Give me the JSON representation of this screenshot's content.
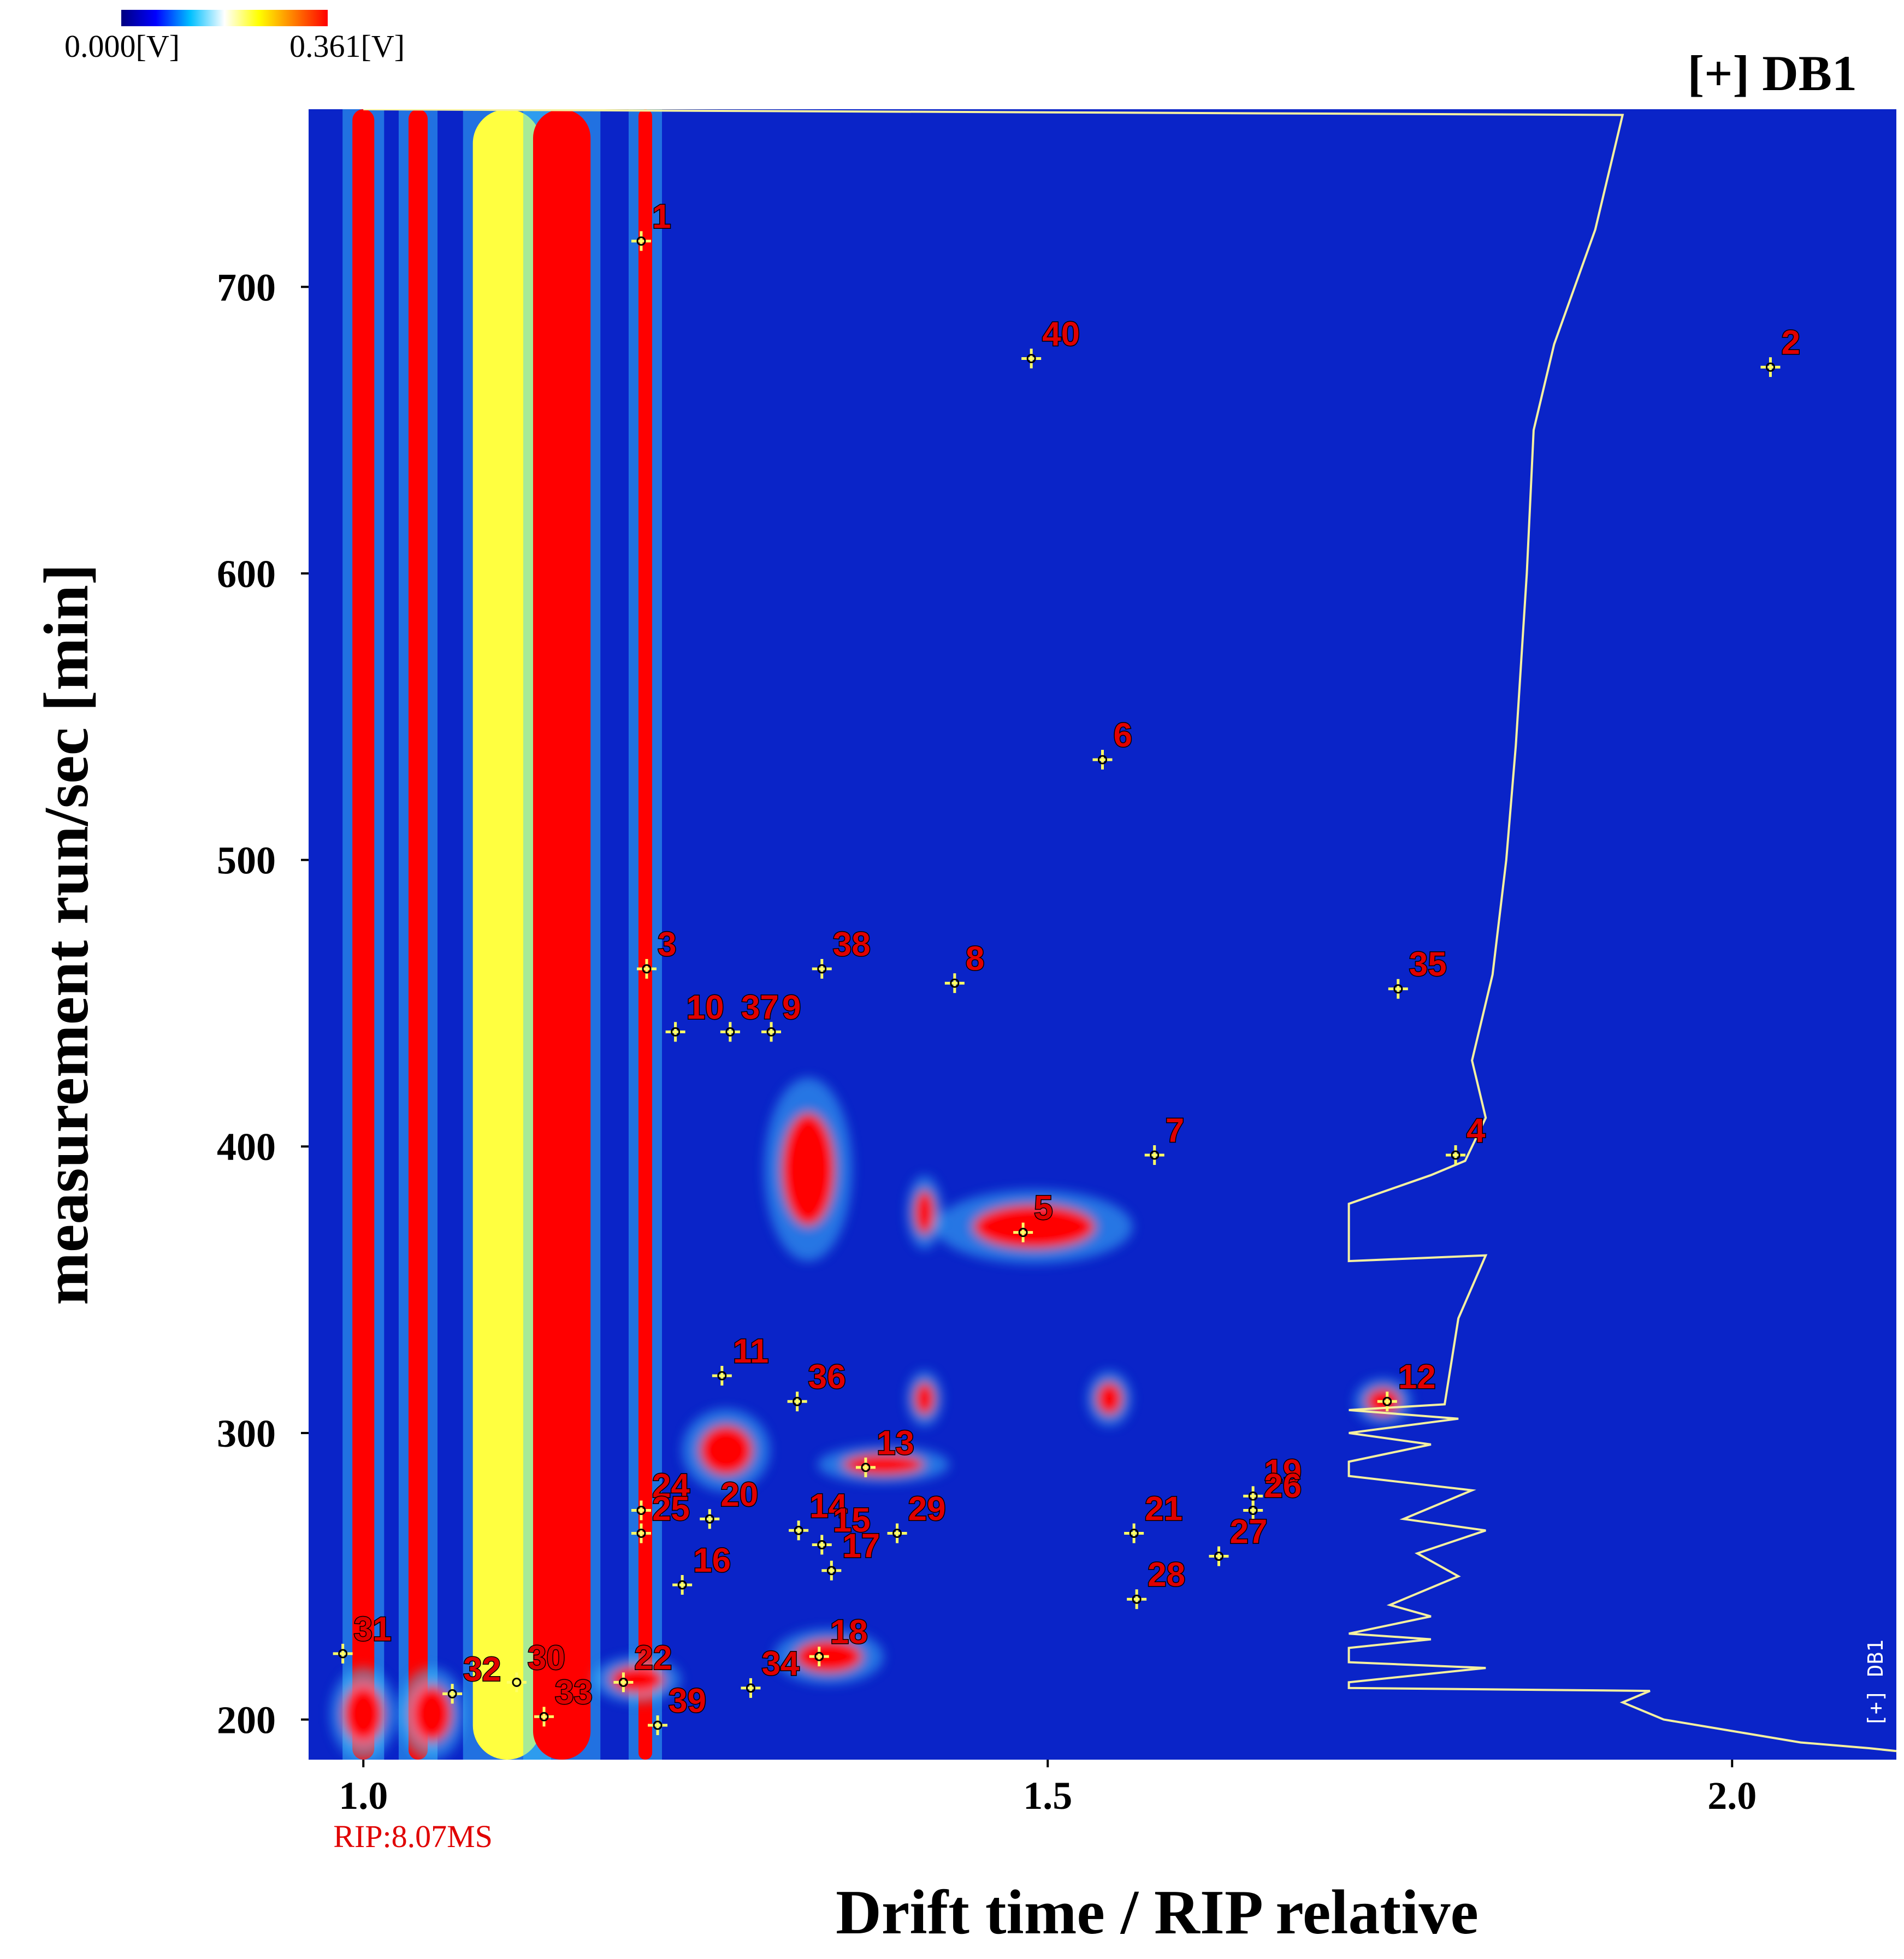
{
  "chart_data": {
    "type": "heatmap",
    "title": "[+] DB1",
    "xlabel": "Drift time / RIP relative",
    "ylabel": "measurement run/sec [min]",
    "xlim": [
      0.96,
      2.12
    ],
    "ylim": [
      186,
      762
    ],
    "xticks": [
      1.0,
      1.5,
      2.0
    ],
    "xtick_labels": [
      "1.0",
      "1.5",
      "2.0"
    ],
    "yticks": [
      200,
      300,
      400,
      500,
      600,
      700
    ],
    "ytick_labels": [
      "200",
      "300",
      "400",
      "500",
      "600",
      "700"
    ],
    "rip_label": "RIP:8.07MS",
    "side_label": "[+] DB1",
    "colorbar": {
      "min_label": "0.000[V]",
      "max_label": "0.361[V]",
      "colors": [
        "#000080",
        "#0000ff",
        "#00bfff",
        "#ffffff",
        "#ffff00",
        "#ff8000",
        "#ff0000"
      ]
    },
    "background_color": "#0a24c8",
    "marker_color": "#ffff66",
    "label_color": "#e00000",
    "bands": [
      {
        "x": 1.0,
        "width": 0.016,
        "y_start": 186,
        "y_end": 762,
        "color": "#ff0000"
      },
      {
        "x": 1.04,
        "width": 0.014,
        "y_start": 186,
        "y_end": 762,
        "color": "#ff0000"
      },
      {
        "x": 1.105,
        "width": 0.05,
        "y_start": 186,
        "y_end": 762,
        "color": "#ffff40"
      },
      {
        "x": 1.145,
        "width": 0.042,
        "y_start": 186,
        "y_end": 762,
        "color": "#ff0000"
      },
      {
        "x": 1.206,
        "width": 0.01,
        "y_start": 186,
        "y_end": 762,
        "color": "#ff0000"
      }
    ],
    "blobs": [
      {
        "x": 1.325,
        "y": 392,
        "rx": 0.02,
        "ry": 20,
        "color": "#ff0000"
      },
      {
        "x": 1.49,
        "y": 372,
        "rx": 0.045,
        "ry": 8,
        "color": "#ff0000"
      },
      {
        "x": 1.41,
        "y": 377,
        "rx": 0.008,
        "ry": 8,
        "color": "#ff0000"
      },
      {
        "x": 1.41,
        "y": 312,
        "rx": 0.008,
        "ry": 6,
        "color": "#ff0000"
      },
      {
        "x": 1.545,
        "y": 312,
        "rx": 0.01,
        "ry": 6,
        "color": "#ff0000"
      },
      {
        "x": 1.745,
        "y": 311,
        "rx": 0.013,
        "ry": 5,
        "color": "#ff0000"
      },
      {
        "x": 1.265,
        "y": 294,
        "rx": 0.02,
        "ry": 9,
        "color": "#ff0000"
      },
      {
        "x": 1.38,
        "y": 289,
        "rx": 0.03,
        "ry": 4,
        "color": "#ff0000"
      },
      {
        "x": 1.34,
        "y": 222,
        "rx": 0.025,
        "ry": 6,
        "color": "#ff0000"
      },
      {
        "x": 1.2,
        "y": 214,
        "rx": 0.02,
        "ry": 5,
        "color": "#ff0000"
      },
      {
        "x": 1.0,
        "y": 202,
        "rx": 0.015,
        "ry": 10,
        "color": "#ff0000"
      },
      {
        "x": 1.05,
        "y": 202,
        "rx": 0.015,
        "ry": 10,
        "color": "#ff0000"
      }
    ],
    "profile_line": {
      "color": "#f5f0a0",
      "points": [
        [
          1.0,
          762
        ],
        [
          1.92,
          760
        ],
        [
          1.9,
          720
        ],
        [
          1.87,
          680
        ],
        [
          1.855,
          650
        ],
        [
          1.85,
          600
        ],
        [
          1.842,
          540
        ],
        [
          1.835,
          500
        ],
        [
          1.825,
          460
        ],
        [
          1.81,
          430
        ],
        [
          1.82,
          410
        ],
        [
          1.805,
          395
        ],
        [
          1.78,
          390
        ],
        [
          1.72,
          380
        ],
        [
          1.72,
          360
        ],
        [
          1.82,
          362
        ],
        [
          1.8,
          340
        ],
        [
          1.79,
          310
        ],
        [
          1.72,
          308
        ],
        [
          1.8,
          305
        ],
        [
          1.72,
          300
        ],
        [
          1.78,
          296
        ],
        [
          1.72,
          290
        ],
        [
          1.72,
          285
        ],
        [
          1.81,
          280
        ],
        [
          1.76,
          270
        ],
        [
          1.82,
          266
        ],
        [
          1.77,
          258
        ],
        [
          1.8,
          250
        ],
        [
          1.75,
          240
        ],
        [
          1.78,
          236
        ],
        [
          1.72,
          230
        ],
        [
          1.78,
          228
        ],
        [
          1.72,
          225
        ],
        [
          1.72,
          220
        ],
        [
          1.82,
          218
        ],
        [
          1.72,
          213
        ],
        [
          1.72,
          211
        ],
        [
          1.94,
          210
        ],
        [
          1.92,
          206
        ],
        [
          1.95,
          200
        ],
        [
          2.0,
          196
        ],
        [
          2.05,
          192
        ],
        [
          2.1,
          190
        ],
        [
          2.12,
          189
        ]
      ]
    },
    "peaks": [
      {
        "label": "1",
        "x": 1.203,
        "y": 716
      },
      {
        "label": "40",
        "x": 1.488,
        "y": 675
      },
      {
        "label": "2",
        "x": 2.028,
        "y": 672
      },
      {
        "label": "6",
        "x": 1.54,
        "y": 535
      },
      {
        "label": "3",
        "x": 1.207,
        "y": 462
      },
      {
        "label": "38",
        "x": 1.335,
        "y": 462
      },
      {
        "label": "8",
        "x": 1.432,
        "y": 457
      },
      {
        "label": "35",
        "x": 1.756,
        "y": 455
      },
      {
        "label": "10",
        "x": 1.228,
        "y": 440
      },
      {
        "label": "37",
        "x": 1.268,
        "y": 440
      },
      {
        "label": "9",
        "x": 1.298,
        "y": 440
      },
      {
        "label": "7",
        "x": 1.578,
        "y": 397
      },
      {
        "label": "4",
        "x": 1.798,
        "y": 397
      },
      {
        "label": "5",
        "x": 1.482,
        "y": 370
      },
      {
        "label": "11",
        "x": 1.262,
        "y": 320
      },
      {
        "label": "36",
        "x": 1.317,
        "y": 311
      },
      {
        "label": "12",
        "x": 1.748,
        "y": 311
      },
      {
        "label": "13",
        "x": 1.367,
        "y": 288
      },
      {
        "label": "24",
        "x": 1.203,
        "y": 273
      },
      {
        "label": "20",
        "x": 1.253,
        "y": 270
      },
      {
        "label": "19",
        "x": 1.65,
        "y": 278
      },
      {
        "label": "26",
        "x": 1.65,
        "y": 273
      },
      {
        "label": "14",
        "x": 1.318,
        "y": 266
      },
      {
        "label": "25",
        "x": 1.203,
        "y": 265
      },
      {
        "label": "29",
        "x": 1.39,
        "y": 265
      },
      {
        "label": "15",
        "x": 1.335,
        "y": 261
      },
      {
        "label": "21",
        "x": 1.563,
        "y": 265
      },
      {
        "label": "27",
        "x": 1.625,
        "y": 257
      },
      {
        "label": "16",
        "x": 1.233,
        "y": 247
      },
      {
        "label": "17",
        "x": 1.342,
        "y": 252
      },
      {
        "label": "28",
        "x": 1.565,
        "y": 242
      },
      {
        "label": "31",
        "x": 0.985,
        "y": 223
      },
      {
        "label": "18",
        "x": 1.333,
        "y": 222
      },
      {
        "label": "22",
        "x": 1.19,
        "y": 213
      },
      {
        "label": "30",
        "x": 1.112,
        "y": 213
      },
      {
        "label": "32",
        "x": 1.065,
        "y": 209
      },
      {
        "label": "34",
        "x": 1.283,
        "y": 211
      },
      {
        "label": "33",
        "x": 1.132,
        "y": 201
      },
      {
        "label": "39",
        "x": 1.215,
        "y": 198
      }
    ]
  }
}
